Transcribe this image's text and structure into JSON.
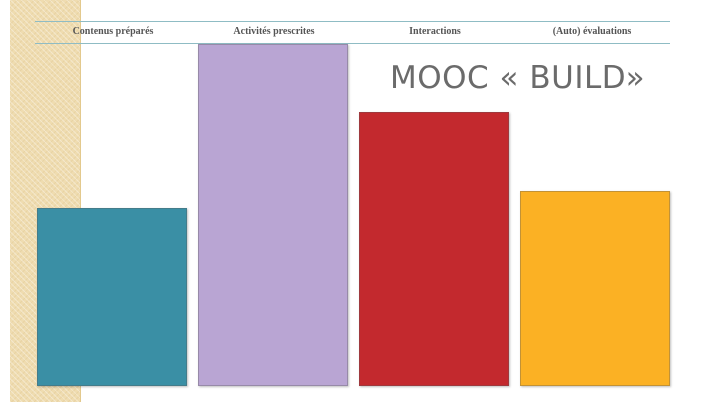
{
  "slide": {
    "title": "MOOC « BUILD»"
  },
  "chart_data": {
    "type": "bar",
    "title": "MOOC « BUILD»",
    "categories": [
      "Contenus préparés",
      "Activités prescrites",
      "Interactions",
      "(Auto) évaluations"
    ],
    "values": [
      52,
      100,
      80,
      57
    ],
    "ylim": [
      0,
      100
    ],
    "grid": false,
    "legend": "none",
    "colors": [
      "#3a8fa5",
      "#b9a5d3",
      "#c3292e",
      "#fbb124"
    ]
  }
}
